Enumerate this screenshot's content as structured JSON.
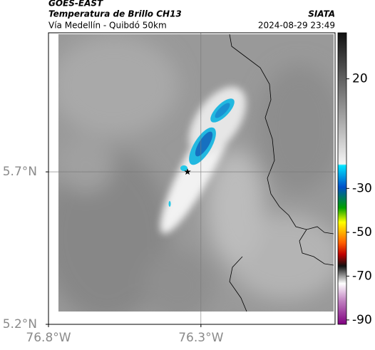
{
  "header": {
    "source": "GOES-EAST",
    "title": "Temperatura de Brillo CH13",
    "subtitle": "Vía Medellín - Quibdó 50km",
    "credit": "SIATA",
    "datetime": "2024-08-29 23:49"
  },
  "map": {
    "xlim": [
      -76.8,
      -75.86
    ],
    "ylim": [
      5.2,
      6.156
    ],
    "xticks": [
      {
        "value": -76.8,
        "label": "76.8°W"
      },
      {
        "value": -76.3,
        "label": "76.3°W"
      }
    ],
    "yticks": [
      {
        "value": 5.2,
        "label": "5.2°N"
      },
      {
        "value": 5.7,
        "label": "5.7°N"
      }
    ],
    "grid": true,
    "marker": {
      "lon": -76.344,
      "lat": 5.7
    }
  },
  "colorbar": {
    "lim": [
      -92,
      41
    ],
    "ticks": [
      20,
      -30,
      -50,
      -70,
      -90
    ]
  }
}
